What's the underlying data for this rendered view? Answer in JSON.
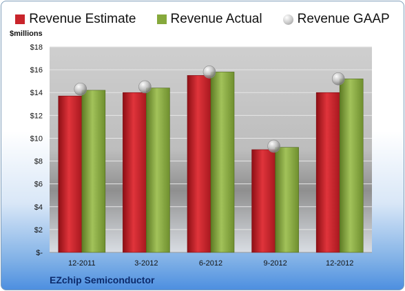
{
  "legend": {
    "estimate": "Revenue Estimate",
    "actual": "Revenue Actual",
    "gaap": "Revenue GAAP"
  },
  "unit_label": "$millions",
  "company": "EZchip Semiconductor",
  "colors": {
    "estimate": "#c9242b",
    "actual": "#86a93c",
    "gaap": "#b8b8b8"
  },
  "chart_data": {
    "type": "bar",
    "categories": [
      "12-2011",
      "3-2012",
      "6-2012",
      "9-2012",
      "12-2012"
    ],
    "series": [
      {
        "name": "Revenue Estimate",
        "values": [
          13.7,
          14.0,
          15.5,
          9.0,
          14.0
        ]
      },
      {
        "name": "Revenue Actual",
        "values": [
          14.2,
          14.4,
          15.8,
          9.2,
          15.2
        ]
      },
      {
        "name": "Revenue GAAP",
        "values": [
          14.3,
          14.5,
          15.8,
          9.3,
          15.2
        ]
      }
    ],
    "ylim": [
      0,
      18
    ],
    "yticks": [
      0,
      2,
      4,
      6,
      8,
      10,
      12,
      14,
      16,
      18
    ],
    "ytick_labels": [
      "$-",
      "$2",
      "$4",
      "$6",
      "$8",
      "$10",
      "$12",
      "$14",
      "$16",
      "$18"
    ],
    "legend_position": "top",
    "grid": true
  }
}
